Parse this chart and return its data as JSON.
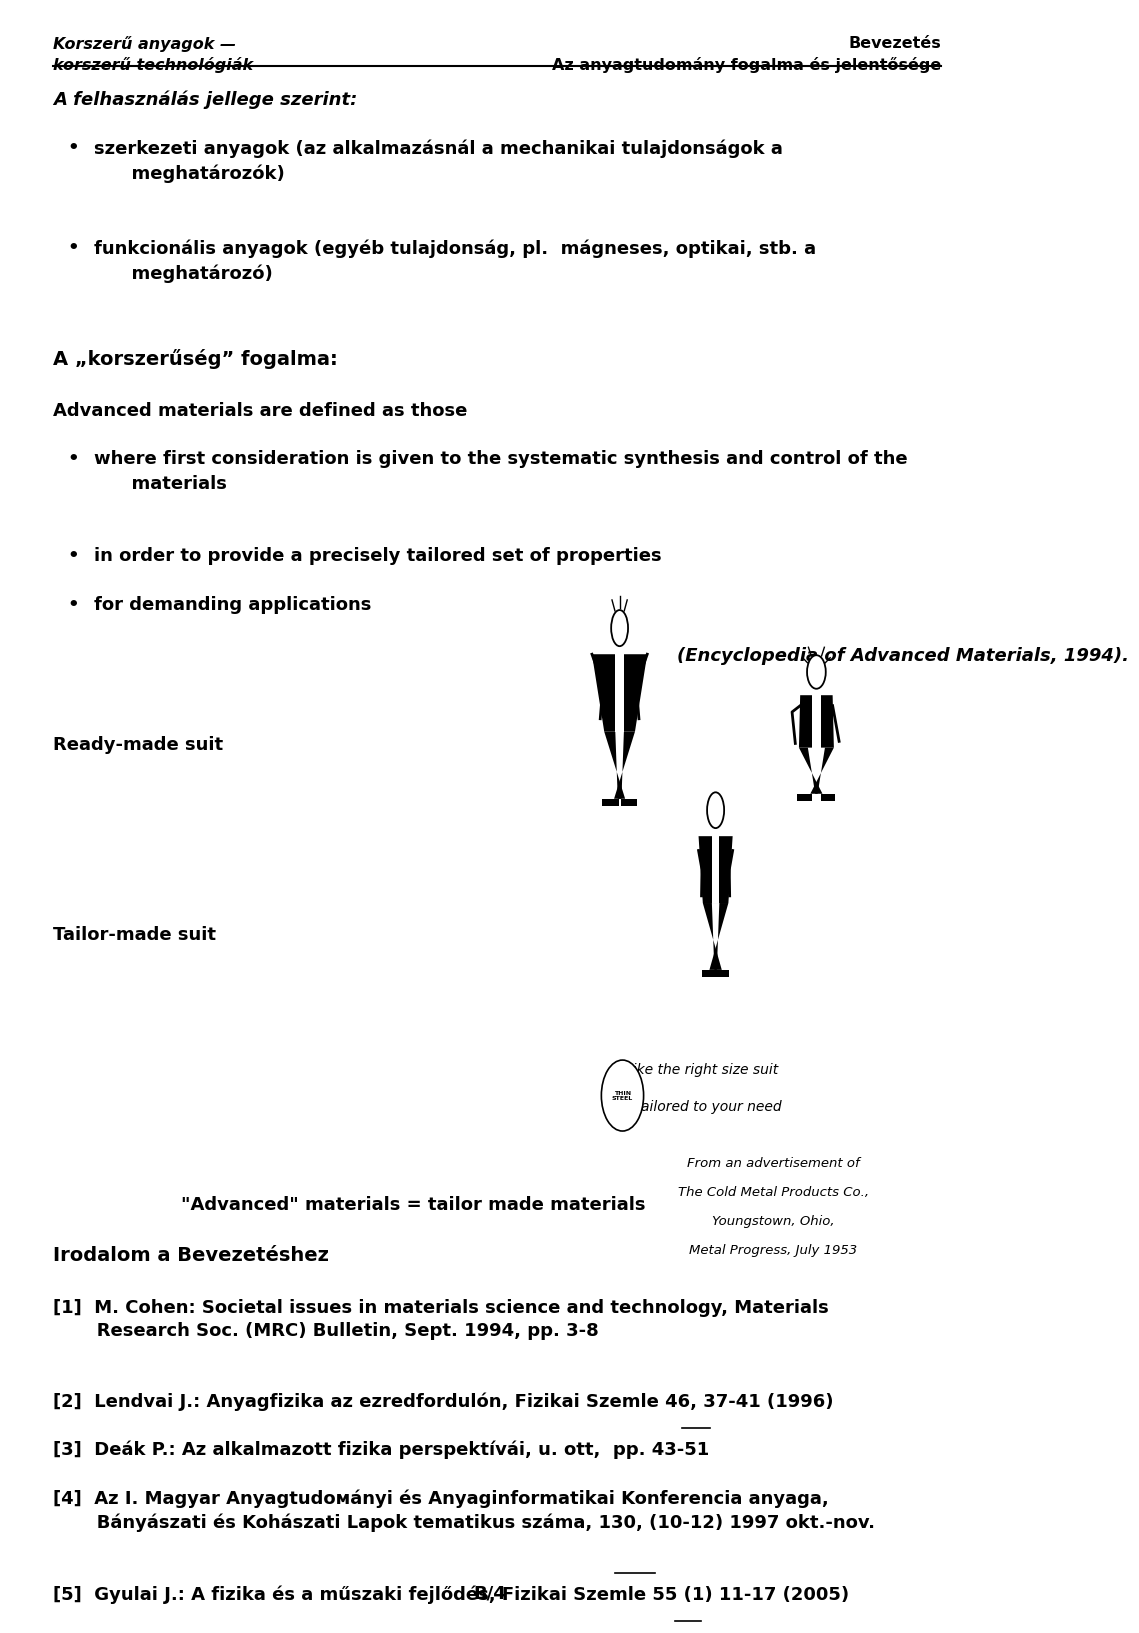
{
  "bg_color": "#ffffff",
  "header_left_line1": "Korszerű anyagok —",
  "header_left_line2": "korszerű technológiák",
  "header_right_line1": "Bevezetés",
  "header_right_line2": "Az anyagtudomány fogalma és jelentősége",
  "section1_title": "A felhasználás jellege szerint:",
  "bullet1a": "szerkezeti anyagok (az alkalmazásnál a mechanikai tulajdonságok a\n      meghatározók)",
  "bullet1b": "funkcionális anyagok (egyéb tulajdonság, pl.  mágneses, optikai, stb. a\n      meghatározó)",
  "section2_title": "A „korszerűség” fogalma:",
  "section2_sub": "Advanced materials are defined as those",
  "bullet2a": "where first consideration is given to the systematic synthesis and control of the\n      materials",
  "bullet2b": "in order to provide a precisely tailored set of properties",
  "bullet2c": "for demanding applications",
  "citation": "(Encyclopedia of Advanced Materials, 1994).",
  "label_ready": "Ready-made suit",
  "label_tailor": "Tailor-made suit",
  "caption_adv": "\"Advanced\" materials = tailor made materials",
  "advert_line1": "From an advertisement of",
  "advert_line2": "The Cold Metal Products Co.,",
  "advert_line3": "Youngstown, Ohio,",
  "advert_line4": "Metal Progress, July 1953",
  "section3_title": "Irodalom a Bevezetéshez",
  "ref1": "[1]  M. Cohen: Societal issues in materials science and technology, Materials\n       Research Soc. (MRC) Bulletin, Sept. 1994, pp. 3-8",
  "ref2": "[2]  Lendvai J.: Anyagfizika az ezredfordulón, Fizikai Szemle 46, 37-41 (1996)",
  "ref3": "[3]  Deák P.: Az alkalmazott fizika perspektívái, u. ott,  pp. 43-51",
  "ref4": "[4]  Az I. Magyar Anyagtudомányi és Anyaginformatikai Konferencia anyaga,\n       Bányászati és Kohászati Lapok tematikus száma, 130, (10-12) 1997 okt.-nov.",
  "ref5": "[5]  Gyulai J.: A fizika és a műszaki fejlődés, Fizikai Szemle 55 (1) 11-17 (2005)",
  "footer": "B/4",
  "fs_header": 11.5,
  "fs_body": 13,
  "fs_section": 14,
  "fs_small": 9.5,
  "ml": 0.045,
  "mr": 0.97
}
